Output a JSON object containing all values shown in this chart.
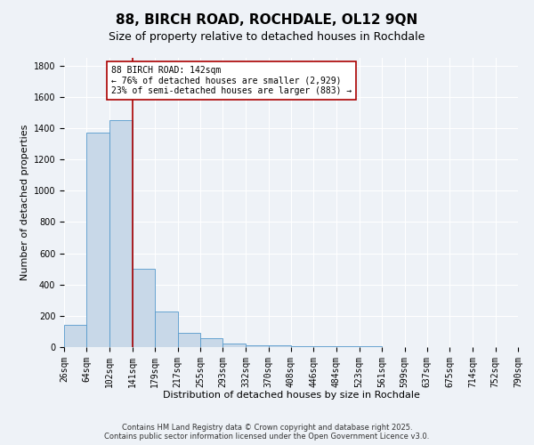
{
  "title": "88, BIRCH ROAD, ROCHDALE, OL12 9QN",
  "subtitle": "Size of property relative to detached houses in Rochdale",
  "xlabel": "Distribution of detached houses by size in Rochdale",
  "ylabel": "Number of detached properties",
  "bin_edges": [
    26,
    64,
    102,
    141,
    179,
    217,
    255,
    293,
    332,
    370,
    408,
    446,
    484,
    523,
    561,
    599,
    637,
    675,
    714,
    752,
    790
  ],
  "bar_heights": [
    140,
    1370,
    1450,
    500,
    230,
    90,
    55,
    25,
    10,
    10,
    5,
    5,
    5,
    3,
    2,
    2,
    2,
    2,
    2,
    2
  ],
  "bar_color": "#c8d8e8",
  "bar_edgecolor": "#5599cc",
  "property_size": 142,
  "vline_color": "#aa0000",
  "ylim": [
    0,
    1850
  ],
  "yticks": [
    0,
    200,
    400,
    600,
    800,
    1000,
    1200,
    1400,
    1600,
    1800
  ],
  "annotation_text": "88 BIRCH ROAD: 142sqm\n← 76% of detached houses are smaller (2,929)\n23% of semi-detached houses are larger (883) →",
  "annotation_box_color": "#ffffff",
  "annotation_border_color": "#aa0000",
  "background_color": "#eef2f7",
  "grid_color": "#ffffff",
  "footer_line1": "Contains HM Land Registry data © Crown copyright and database right 2025.",
  "footer_line2": "Contains public sector information licensed under the Open Government Licence v3.0.",
  "title_fontsize": 11,
  "subtitle_fontsize": 9,
  "tick_fontsize": 7,
  "xlabel_fontsize": 8,
  "ylabel_fontsize": 8,
  "annotation_fontsize": 7,
  "footer_fontsize": 6
}
